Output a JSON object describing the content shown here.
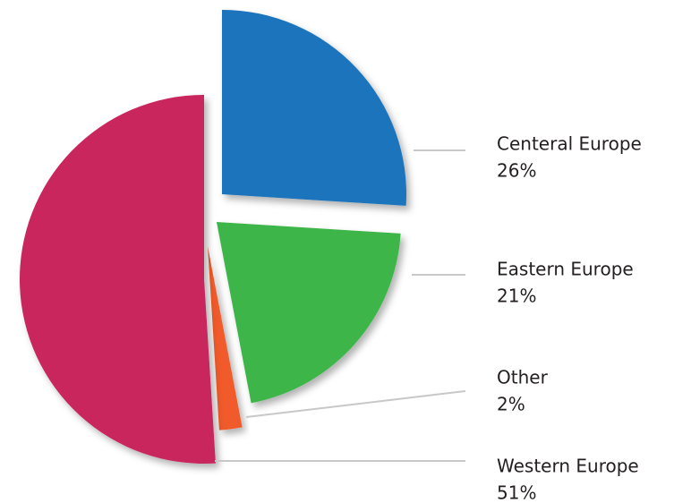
{
  "chart_data": {
    "type": "pie",
    "categories": [
      "Centeral Europe",
      "Eastern Europe",
      "Other",
      "Western Europe"
    ],
    "values": [
      26,
      21,
      2,
      51
    ],
    "value_labels": [
      "26%",
      "21%",
      "2%",
      "51%"
    ],
    "colors": [
      "#1b75bc",
      "#3cb54a",
      "#f15a2b",
      "#c8255c"
    ]
  }
}
